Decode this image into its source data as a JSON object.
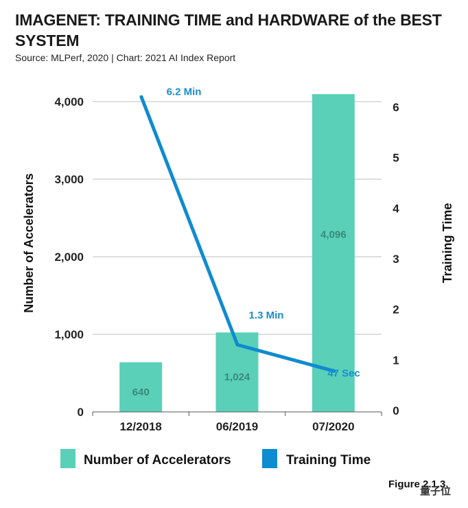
{
  "title": "IMAGENET: TRAINING TIME and HARDWARE of the BEST SYSTEM",
  "subtitle": "Source: MLPerf, 2020 | Chart: 2021 AI Index Report",
  "figure_label": "Figure 2.1.3",
  "watermark": "量子位",
  "colors": {
    "bars": "#5ad0b8",
    "line": "#0f8bd0",
    "grid": "#d4d4d4"
  },
  "chart_data": {
    "type": "bar",
    "categories": [
      "12/2018",
      "06/2019",
      "07/2020"
    ],
    "series": [
      {
        "name": "Number of Accelerators",
        "type": "bar",
        "axis": "left",
        "values": [
          640,
          1024,
          4096
        ],
        "labels": [
          "640",
          "1,024",
          "4,096"
        ]
      },
      {
        "name": "Training Time",
        "type": "line",
        "axis": "right",
        "values": [
          6.2,
          1.3,
          0.78
        ],
        "labels": [
          "6.2 Min",
          "1.3 Min",
          "47 Sec"
        ]
      }
    ],
    "ylabel_left": "Number of Accelerators",
    "ylabel_right": "Training Time",
    "ylim_left": [
      0,
      4000
    ],
    "ylim_right": [
      0,
      6
    ],
    "yticks_left": [
      "0",
      "1,000",
      "2,000",
      "3,000",
      "4,000"
    ],
    "yticks_right": [
      "0",
      "1",
      "2",
      "3",
      "4",
      "5",
      "6"
    ],
    "legend": [
      "Number of Accelerators",
      "Training Time"
    ],
    "grid": true
  }
}
